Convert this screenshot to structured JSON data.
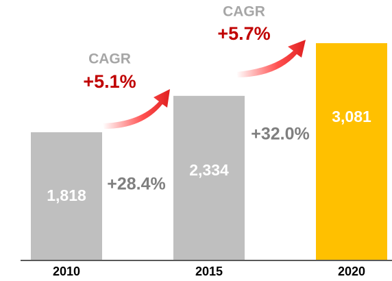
{
  "chart_data": {
    "type": "bar",
    "categories": [
      "2010",
      "2015",
      "2020"
    ],
    "values": [
      1818,
      2334,
      3081
    ],
    "value_labels": [
      "1,818",
      "2,334",
      "3,081"
    ],
    "colors": [
      "#bfbfbf",
      "#bfbfbf",
      "#ffc000"
    ],
    "annotations": [
      "CAGR",
      "+5.1%",
      "CAGR",
      "+5.7%",
      "+28.4%",
      "+32.0%"
    ]
  }
}
